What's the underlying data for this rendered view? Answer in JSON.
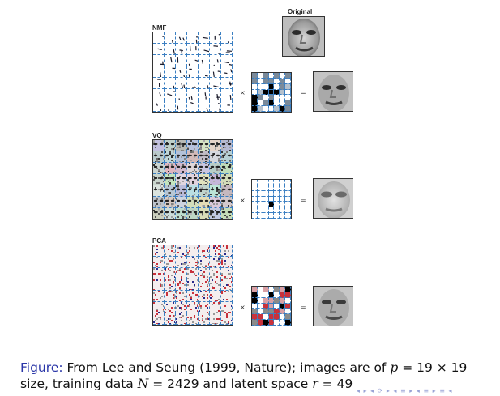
{
  "panels": {
    "original_label": "Original",
    "nmf_label": "NMF",
    "vq_label": "VQ",
    "pca_label": "PCA",
    "times_symbol": "×",
    "equals_symbol": "="
  },
  "caption": {
    "figure_label": "Figure:",
    "line1_text": "From Lee and Seung (1999, Nature); images are of ",
    "p_var": "p",
    "p_value": " = 19 × 19",
    "line2_start": "size, training data ",
    "n_var": "N",
    "n_value": " = 2429 and latent space ",
    "r_var": "r",
    "r_value": " = 49"
  },
  "nav": {
    "symbols": "◂ ▸ ◂ ⟳ ▸ ◂ ≡ ▸ ◂ ≡ ▸  ≡  ◂"
  },
  "colors": {
    "grid_dash": "#3b7fc2",
    "caption_accent": "#2a36a8",
    "pca_red": "#c8323c"
  }
}
